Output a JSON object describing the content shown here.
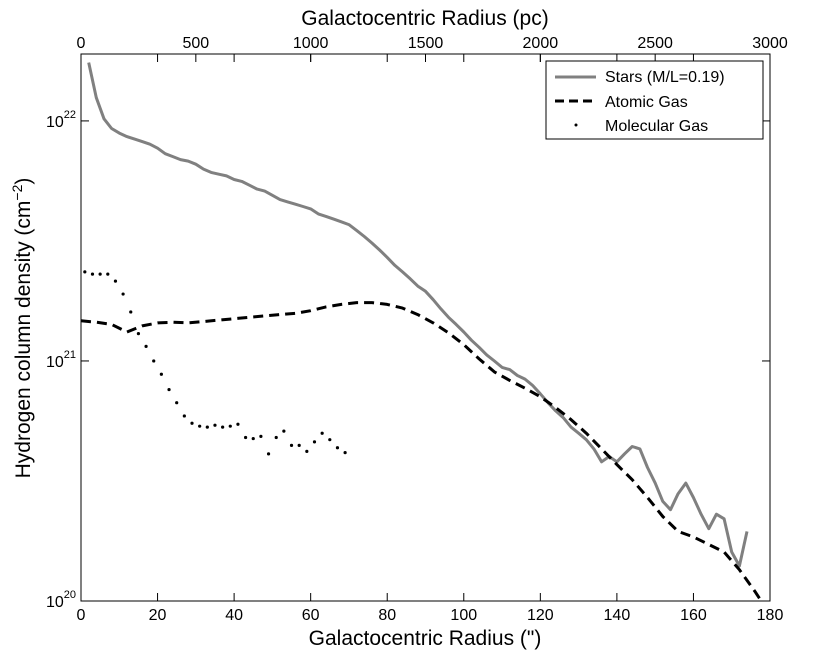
{
  "chart_data": {
    "type": "line",
    "scale": {
      "x": "linear",
      "y": "log"
    },
    "xlabel": "Galactocentric Radius (\")",
    "top_xlabel": "Galactocentric Radius (pc)",
    "ylabel": "Hydrogen column density (cm",
    "ylabel_exp": "−2",
    "ylabel_close": ")",
    "xlim": [
      0,
      180
    ],
    "top_xlim": [
      0,
      3000
    ],
    "ylim": [
      1e+20,
      1.9e+22
    ],
    "x_ticks": [
      "0",
      "20",
      "40",
      "60",
      "80",
      "100",
      "120",
      "140",
      "160",
      "180"
    ],
    "top_ticks": [
      "0",
      "500",
      "1000",
      "1500",
      "2000",
      "2500",
      "3000"
    ],
    "y_ticks": [
      {
        "value": 1e+20,
        "base": "10",
        "exp": "20"
      },
      {
        "value": 1e+21,
        "base": "10",
        "exp": "21"
      },
      {
        "value": 1e+22,
        "base": "10",
        "exp": "22"
      }
    ],
    "legend_position": "top-right",
    "series": [
      {
        "name": "Stars (M/L=0.19)",
        "style": "solid",
        "color": "#808080",
        "points": [
          [
            2,
            1.75e+22
          ],
          [
            4,
            1.25e+22
          ],
          [
            6,
            1.02e+22
          ],
          [
            8,
            9.3e+21
          ],
          [
            10,
            8.9e+21
          ],
          [
            12,
            8.6e+21
          ],
          [
            14,
            8.4e+21
          ],
          [
            16,
            8.2e+21
          ],
          [
            18,
            8e+21
          ],
          [
            20,
            7.7e+21
          ],
          [
            22,
            7.3e+21
          ],
          [
            24,
            7.1e+21
          ],
          [
            26,
            6.9e+21
          ],
          [
            28,
            6.8e+21
          ],
          [
            30,
            6.6e+21
          ],
          [
            32,
            6.3e+21
          ],
          [
            34,
            6.1e+21
          ],
          [
            36,
            6e+21
          ],
          [
            38,
            5.9e+21
          ],
          [
            40,
            5.7e+21
          ],
          [
            42,
            5.6e+21
          ],
          [
            44,
            5.4e+21
          ],
          [
            46,
            5.2e+21
          ],
          [
            48,
            5.1e+21
          ],
          [
            50,
            4.9e+21
          ],
          [
            52,
            4.7e+21
          ],
          [
            54,
            4.6e+21
          ],
          [
            56,
            4.5e+21
          ],
          [
            58,
            4.4e+21
          ],
          [
            60,
            4.3e+21
          ],
          [
            62,
            4.1e+21
          ],
          [
            64,
            4e+21
          ],
          [
            66,
            3.9e+21
          ],
          [
            68,
            3.8e+21
          ],
          [
            70,
            3.7e+21
          ],
          [
            72,
            3.5e+21
          ],
          [
            74,
            3.3e+21
          ],
          [
            76,
            3.1e+21
          ],
          [
            78,
            2.9e+21
          ],
          [
            80,
            2.7e+21
          ],
          [
            82,
            2.5e+21
          ],
          [
            84,
            2.35e+21
          ],
          [
            86,
            2.2e+21
          ],
          [
            88,
            2.05e+21
          ],
          [
            90,
            1.95e+21
          ],
          [
            92,
            1.8e+21
          ],
          [
            94,
            1.65e+21
          ],
          [
            96,
            1.52e+21
          ],
          [
            98,
            1.42e+21
          ],
          [
            100,
            1.32e+21
          ],
          [
            102,
            1.22e+21
          ],
          [
            104,
            1.14e+21
          ],
          [
            106,
            1.06e+21
          ],
          [
            108,
            1e+21
          ],
          [
            110,
            9.4e+20
          ],
          [
            112,
            9.2e+20
          ],
          [
            114,
            8.7e+20
          ],
          [
            116,
            8.4e+20
          ],
          [
            118,
            7.9e+20
          ],
          [
            120,
            7.3e+20
          ],
          [
            122,
            6.7e+20
          ],
          [
            124,
            6.2e+20
          ],
          [
            126,
            5.8e+20
          ],
          [
            128,
            5.3e+20
          ],
          [
            130,
            5e+20
          ],
          [
            132,
            4.7e+20
          ],
          [
            134,
            4.3e+20
          ],
          [
            136,
            3.8e+20
          ],
          [
            138,
            4e+20
          ],
          [
            140,
            3.8e+20
          ],
          [
            142,
            4.1e+20
          ],
          [
            144,
            4.4e+20
          ],
          [
            146,
            4.3e+20
          ],
          [
            148,
            3.6e+20
          ],
          [
            150,
            3.1e+20
          ],
          [
            152,
            2.6e+20
          ],
          [
            154,
            2.4e+20
          ],
          [
            156,
            2.8e+20
          ],
          [
            158,
            3.1e+20
          ],
          [
            160,
            2.7e+20
          ],
          [
            162,
            2.3e+20
          ],
          [
            164,
            2e+20
          ],
          [
            166,
            2.3e+20
          ],
          [
            168,
            2.2e+20
          ],
          [
            170,
            1.6e+20
          ],
          [
            172,
            1.4e+20
          ],
          [
            174,
            1.95e+20
          ]
        ]
      },
      {
        "name": "Atomic Gas",
        "style": "dashed",
        "color": "#000000",
        "points": [
          [
            0,
            1.47e+21
          ],
          [
            4,
            1.45e+21
          ],
          [
            8,
            1.42e+21
          ],
          [
            12,
            1.32e+21
          ],
          [
            16,
            1.4e+21
          ],
          [
            20,
            1.44e+21
          ],
          [
            24,
            1.45e+21
          ],
          [
            28,
            1.44e+21
          ],
          [
            32,
            1.46e+21
          ],
          [
            36,
            1.48e+21
          ],
          [
            40,
            1.5e+21
          ],
          [
            44,
            1.52e+21
          ],
          [
            48,
            1.54e+21
          ],
          [
            52,
            1.56e+21
          ],
          [
            56,
            1.58e+21
          ],
          [
            60,
            1.62e+21
          ],
          [
            64,
            1.68e+21
          ],
          [
            68,
            1.72e+21
          ],
          [
            72,
            1.75e+21
          ],
          [
            76,
            1.75e+21
          ],
          [
            80,
            1.72e+21
          ],
          [
            84,
            1.66e+21
          ],
          [
            88,
            1.56e+21
          ],
          [
            92,
            1.44e+21
          ],
          [
            96,
            1.31e+21
          ],
          [
            100,
            1.17e+21
          ],
          [
            104,
            1.02e+21
          ],
          [
            108,
            9e+20
          ],
          [
            112,
            8.3e+20
          ],
          [
            116,
            7.7e+20
          ],
          [
            120,
            7.1e+20
          ],
          [
            124,
            6.4e+20
          ],
          [
            128,
            5.7e+20
          ],
          [
            132,
            5e+20
          ],
          [
            136,
            4.3e+20
          ],
          [
            140,
            3.7e+20
          ],
          [
            144,
            3.2e+20
          ],
          [
            148,
            2.7e+20
          ],
          [
            152,
            2.25e+20
          ],
          [
            156,
            1.95e+20
          ],
          [
            160,
            1.85e+20
          ],
          [
            164,
            1.72e+20
          ],
          [
            168,
            1.6e+20
          ],
          [
            172,
            1.35e+20
          ],
          [
            176,
            1.1e+20
          ],
          [
            179,
            9.3e+19
          ]
        ]
      },
      {
        "name": "Molecular Gas",
        "style": "dotted",
        "color": "#000000",
        "points": [
          [
            1,
            2.35e+21
          ],
          [
            3,
            2.3e+21
          ],
          [
            5,
            2.3e+21
          ],
          [
            7,
            2.3e+21
          ],
          [
            9,
            2.15e+21
          ],
          [
            11,
            1.9e+21
          ],
          [
            13,
            1.6e+21
          ],
          [
            15,
            1.3e+21
          ],
          [
            17,
            1.15e+21
          ],
          [
            19,
            1e+21
          ],
          [
            21,
            8.8e+20
          ],
          [
            23,
            7.6e+20
          ],
          [
            25,
            6.7e+20
          ],
          [
            27,
            5.9e+20
          ],
          [
            29,
            5.5e+20
          ],
          [
            31,
            5.35e+20
          ],
          [
            33,
            5.3e+20
          ],
          [
            35,
            5.4e+20
          ],
          [
            37,
            5.3e+20
          ],
          [
            39,
            5.35e+20
          ],
          [
            41,
            5.45e+20
          ],
          [
            43,
            4.8e+20
          ],
          [
            45,
            4.75e+20
          ],
          [
            47,
            4.85e+20
          ],
          [
            49,
            4.1e+20
          ],
          [
            51,
            4.8e+20
          ],
          [
            53,
            5.1e+20
          ],
          [
            55,
            4.45e+20
          ],
          [
            57,
            4.45e+20
          ],
          [
            59,
            4.2e+20
          ],
          [
            61,
            4.6e+20
          ],
          [
            63,
            5e+20
          ],
          [
            65,
            4.7e+20
          ],
          [
            67,
            4.35e+20
          ],
          [
            69,
            4.15e+20
          ]
        ]
      }
    ]
  }
}
